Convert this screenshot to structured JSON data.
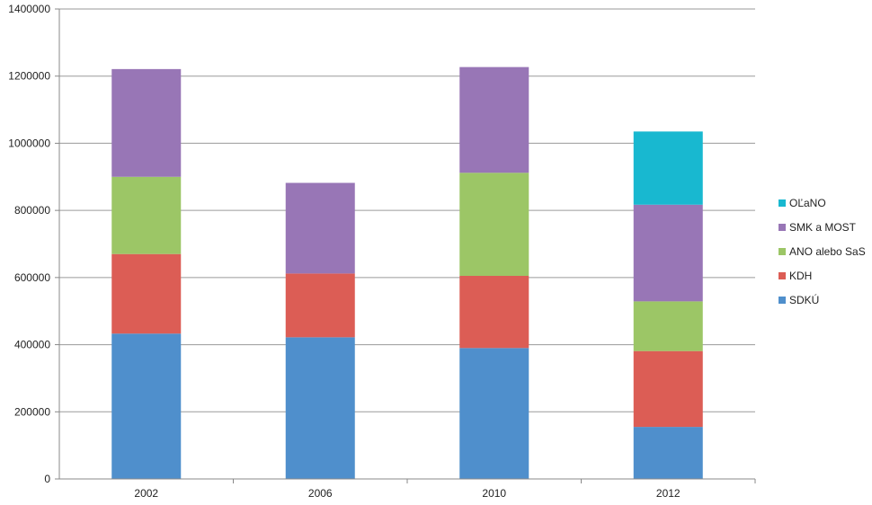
{
  "chart_data": {
    "type": "bar",
    "stacked": true,
    "categories": [
      "2002",
      "2006",
      "2010",
      "2012"
    ],
    "series": [
      {
        "name": "SDKÚ",
        "color": "#4F8FCC",
        "values": [
          433000,
          422000,
          390000,
          155000
        ]
      },
      {
        "name": "KDH",
        "color": "#DC5D55",
        "values": [
          237000,
          190000,
          215000,
          226000
        ]
      },
      {
        "name": "ANO alebo SaS",
        "color": "#9CC666",
        "values": [
          230000,
          0,
          307000,
          148000
        ]
      },
      {
        "name": "SMK a MOST",
        "color": "#9876B6",
        "values": [
          321000,
          270000,
          315000,
          288000
        ]
      },
      {
        "name": "OĽaNO",
        "color": "#18B8D0",
        "values": [
          0,
          0,
          0,
          218000
        ]
      }
    ],
    "xlabel": "",
    "ylabel": "",
    "ylim": [
      0,
      1400000
    ],
    "yticks": [
      0,
      200000,
      400000,
      600000,
      800000,
      1000000,
      1200000,
      1400000
    ],
    "grid": true,
    "legend_position": "right"
  }
}
